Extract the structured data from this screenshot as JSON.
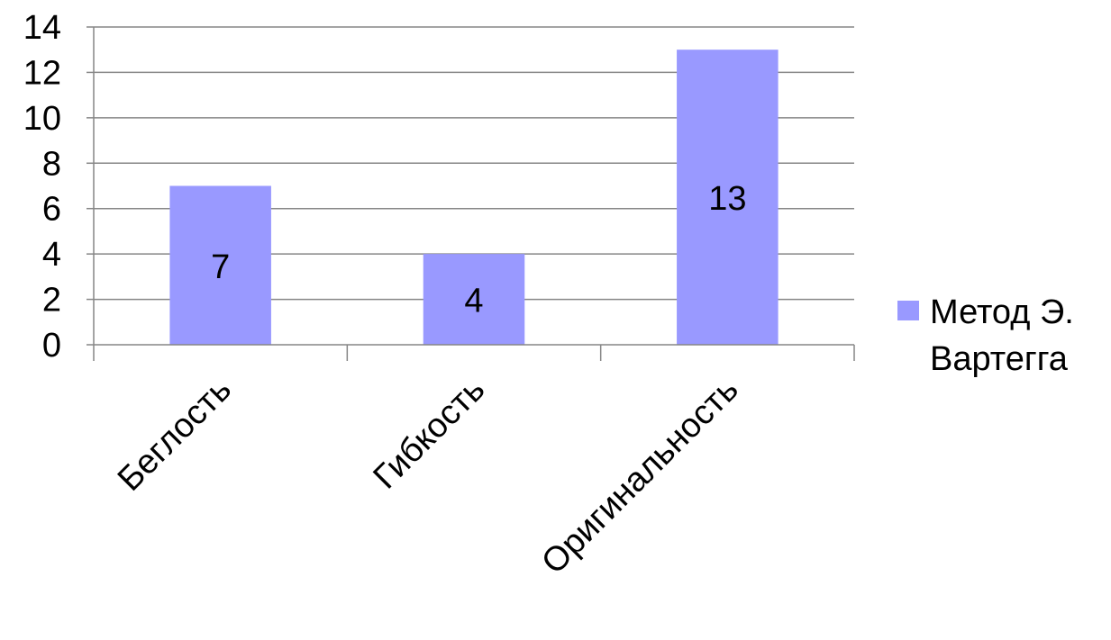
{
  "chart_data": {
    "type": "bar",
    "categories": [
      "Беглость",
      "Гибкость",
      "Оригинальность"
    ],
    "series": [
      {
        "name": "Метод Э. Вартегга",
        "name_lines": [
          "Метод Э.",
          "Вартегга"
        ],
        "values": [
          7,
          4,
          13
        ],
        "color": "#9999ff"
      }
    ],
    "data_labels": [
      "7",
      "4",
      "13"
    ],
    "ylim": [
      0,
      14
    ],
    "yticks": [
      0,
      2,
      4,
      6,
      8,
      10,
      12,
      14
    ],
    "grid": true,
    "gridline_color": "#868686",
    "axis_color": "#868686",
    "legend_position": "right"
  }
}
